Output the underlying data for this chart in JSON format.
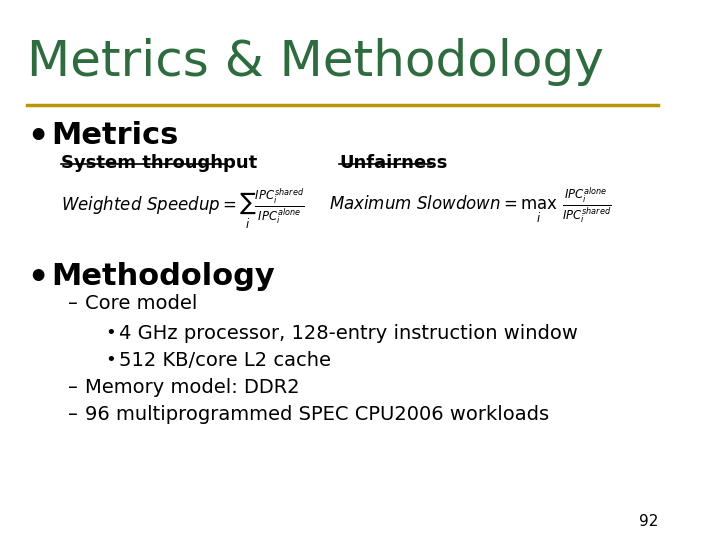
{
  "title": "Metrics & Methodology",
  "title_color": "#2E6B3E",
  "title_fontsize": 36,
  "separator_color": "#B8960C",
  "bg_color": "#FFFFFF",
  "bullet_color": "#000000",
  "metrics_label": "Metrics",
  "methodology_label": "Methodology",
  "bullet_fontsize": 22,
  "sub_label_fontsize": 13,
  "body_fontsize": 14,
  "page_number": "92",
  "throughput_label": "System throughput",
  "unfairness_label": "Unfairness",
  "core_model_line": "Core model",
  "sub_bullet1": "4 GHz processor, 128-entry instruction window",
  "sub_bullet2": "512 KB/core L2 cache",
  "memory_line": "Memory model: DDR2",
  "workload_line": "96 multiprogrammed SPEC CPU2006 workloads"
}
